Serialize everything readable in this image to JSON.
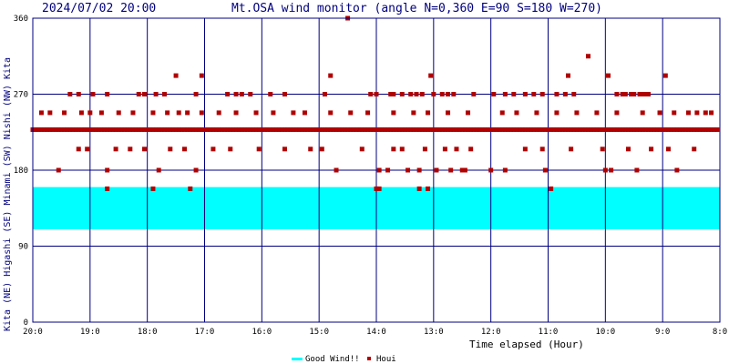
{
  "header": {
    "timestamp": "2024/07/02 20:00",
    "title": "Mt.OSA wind monitor (angle N=0,360 E=90 S=180 W=270)"
  },
  "side_label": "Kita (NE) Higashi (SE) Minami (SW) Nishi (NW) Kita",
  "legend": {
    "good_wind": "Good Wind!!",
    "houi": "Houi"
  },
  "colors": {
    "frame": "#000080",
    "band": "#00ffff",
    "point": "#b00000",
    "grid": "#000080"
  },
  "chart_data": {
    "type": "scatter",
    "title": "Mt.OSA wind monitor (angle N=0,360 E=90 S=180 W=270)",
    "xlabel": "Time elapsed (Hour)",
    "ylabel": "Kita (NE) Higashi (SE) Minami (SW) Nishi (NW) Kita",
    "x_unit": "hours elapsed",
    "xlim": [
      0,
      12
    ],
    "ylim": [
      0,
      360
    ],
    "yticks": [
      0,
      90,
      180,
      270,
      360
    ],
    "ytick_labels": [
      "0",
      "90",
      "180",
      "270",
      "360"
    ],
    "xtick_positions": [
      0,
      1,
      2,
      3,
      4,
      5,
      6,
      7,
      8,
      9,
      10,
      11,
      12
    ],
    "xtick_labels": [
      "20:0",
      "19:0",
      "18:0",
      "17:0",
      "16:0",
      "15:0",
      "14:0",
      "13:0",
      "12:0",
      "11:0",
      "10:0",
      "9:0",
      "8:0"
    ],
    "grid": true,
    "good_wind_range": [
      110,
      160
    ],
    "series": [
      {
        "name": "Houi",
        "x": [
          0.0,
          0.05,
          0.1,
          0.15,
          0.2,
          0.25,
          0.3,
          0.35,
          0.4,
          0.45,
          0.5,
          0.55,
          0.6,
          0.65,
          0.7,
          0.75,
          0.8,
          0.85,
          0.9,
          0.95,
          1.0,
          1.05,
          1.1,
          1.15,
          1.2,
          1.25,
          1.3,
          1.35,
          1.4,
          1.45,
          1.5,
          1.55,
          1.6,
          1.65,
          1.7,
          1.75,
          1.8,
          1.85,
          1.9,
          1.95,
          2.0,
          2.05,
          2.1,
          2.15,
          2.2,
          2.25,
          2.3,
          2.35,
          2.4,
          2.45,
          2.5,
          2.55,
          2.6,
          2.65,
          2.7,
          2.75,
          2.8,
          2.85,
          2.9,
          2.95,
          3.0,
          3.05,
          3.1,
          3.15,
          3.2,
          3.25,
          3.3,
          3.35,
          3.4,
          3.45,
          3.5,
          3.55,
          3.6,
          3.65,
          3.7,
          3.75,
          3.8,
          3.85,
          3.9,
          3.95,
          4.0,
          4.05,
          4.1,
          4.15,
          4.2,
          4.25,
          4.3,
          4.35,
          4.4,
          4.45,
          4.5,
          4.55,
          4.6,
          4.65,
          4.7,
          4.75,
          4.8,
          4.85,
          4.9,
          4.95,
          5.0,
          5.05,
          5.1,
          5.15,
          5.2,
          5.25,
          5.3,
          5.35,
          5.4,
          5.45,
          5.5,
          5.55,
          5.6,
          5.65,
          5.7,
          5.75,
          5.8,
          5.85,
          5.9,
          5.95,
          6.0,
          6.05,
          6.1,
          6.15,
          6.2,
          6.25,
          6.3,
          6.35,
          6.4,
          6.45,
          6.5,
          6.55,
          6.6,
          6.65,
          6.7,
          6.75,
          6.8,
          6.85,
          6.9,
          6.95,
          7.0,
          7.05,
          7.1,
          7.15,
          7.2,
          7.25,
          7.3,
          7.35,
          7.4,
          7.45,
          7.5,
          7.55,
          7.6,
          7.65,
          7.7,
          7.75,
          7.8,
          7.85,
          7.9,
          7.95,
          8.0,
          8.05,
          8.1,
          8.15,
          8.2,
          8.25,
          8.3,
          8.35,
          8.4,
          8.45,
          8.5,
          8.55,
          8.6,
          8.65,
          8.7,
          8.75,
          8.8,
          8.85,
          8.9,
          8.95,
          9.0,
          9.05,
          9.1,
          9.15,
          9.2,
          9.25,
          9.3,
          9.35,
          9.4,
          9.45,
          9.5,
          9.55,
          9.6,
          9.65,
          9.7,
          9.75,
          9.8,
          9.85,
          9.9,
          9.95,
          10.0,
          10.05,
          10.1,
          10.15,
          10.2,
          10.25,
          10.3,
          10.35,
          10.4,
          10.45,
          10.5,
          10.55,
          10.6,
          10.65,
          10.7,
          10.75,
          10.8,
          10.85,
          10.9,
          10.95,
          11.0,
          11.05,
          11.1,
          11.15,
          11.2,
          11.25,
          11.3,
          11.35,
          11.4,
          11.45,
          11.5,
          11.55,
          11.6,
          11.65,
          11.7,
          11.75,
          11.8,
          11.85,
          11.9,
          11.95,
          0.45,
          1.3,
          2.2,
          2.85,
          5.3,
          6.05,
          6.2,
          6.55,
          6.75,
          7.05,
          7.3,
          7.5,
          7.55,
          8.0,
          8.25,
          8.95,
          10.0,
          10.1,
          10.55,
          11.25,
          0.8,
          0.95,
          1.45,
          1.7,
          1.95,
          2.4,
          2.65,
          3.15,
          3.45,
          3.95,
          4.4,
          4.85,
          5.05,
          5.75,
          6.3,
          6.45,
          6.85,
          7.2,
          7.4,
          7.65,
          8.6,
          8.9,
          9.4,
          9.95,
          10.4,
          10.8,
          11.1,
          11.55,
          0.15,
          0.3,
          0.55,
          0.85,
          1.0,
          1.2,
          1.5,
          1.75,
          2.1,
          2.35,
          2.55,
          2.7,
          2.95,
          3.25,
          3.55,
          3.9,
          4.2,
          4.55,
          4.75,
          5.2,
          5.55,
          5.85,
          6.3,
          6.65,
          6.9,
          7.25,
          7.6,
          8.2,
          8.45,
          8.8,
          9.15,
          9.5,
          9.85,
          10.2,
          10.65,
          10.95,
          11.2,
          11.45,
          11.6,
          11.75,
          11.85,
          0.65,
          0.8,
          1.05,
          1.3,
          1.85,
          1.95,
          2.15,
          2.3,
          2.85,
          3.4,
          3.55,
          3.65,
          3.8,
          4.15,
          4.4,
          5.1,
          5.9,
          6.0,
          6.25,
          6.3,
          6.45,
          6.6,
          6.7,
          6.8,
          7.0,
          7.15,
          7.25,
          7.35,
          7.7,
          8.05,
          8.25,
          8.4,
          8.6,
          8.75,
          8.9,
          9.15,
          9.3,
          9.45,
          10.2,
          10.3,
          10.35,
          10.45,
          10.5,
          10.6,
          10.65,
          10.7,
          10.75,
          2.5,
          2.95,
          5.2,
          6.95,
          9.35,
          10.05,
          11.05,
          5.5,
          9.7,
          1.3,
          2.1,
          2.75,
          6.0,
          6.05,
          6.75,
          6.9,
          9.05
        ],
        "y": [
          228,
          228,
          228,
          228,
          228,
          228,
          228,
          228,
          228,
          228,
          228,
          228,
          228,
          228,
          228,
          228,
          228,
          228,
          228,
          228,
          228,
          228,
          228,
          228,
          228,
          228,
          228,
          228,
          228,
          228,
          228,
          228,
          228,
          228,
          228,
          228,
          228,
          228,
          228,
          228,
          228,
          228,
          228,
          228,
          228,
          228,
          228,
          228,
          228,
          228,
          228,
          228,
          228,
          228,
          228,
          228,
          228,
          228,
          228,
          228,
          228,
          228,
          228,
          228,
          228,
          228,
          228,
          228,
          228,
          228,
          228,
          228,
          228,
          228,
          228,
          228,
          228,
          228,
          228,
          228,
          228,
          228,
          228,
          228,
          228,
          228,
          228,
          228,
          228,
          228,
          228,
          228,
          228,
          228,
          228,
          228,
          228,
          228,
          228,
          228,
          228,
          228,
          228,
          228,
          228,
          228,
          228,
          228,
          228,
          228,
          228,
          228,
          228,
          228,
          228,
          228,
          228,
          228,
          228,
          228,
          228,
          228,
          228,
          228,
          228,
          228,
          228,
          228,
          228,
          228,
          228,
          228,
          228,
          228,
          228,
          228,
          228,
          228,
          228,
          228,
          228,
          228,
          228,
          228,
          228,
          228,
          228,
          228,
          228,
          228,
          228,
          228,
          228,
          228,
          228,
          228,
          228,
          228,
          228,
          228,
          228,
          228,
          228,
          228,
          228,
          228,
          228,
          228,
          228,
          228,
          228,
          228,
          228,
          228,
          228,
          228,
          228,
          228,
          228,
          228,
          228,
          228,
          228,
          228,
          228,
          228,
          228,
          228,
          228,
          228,
          228,
          228,
          228,
          228,
          228,
          228,
          228,
          228,
          228,
          228,
          228,
          228,
          228,
          228,
          228,
          228,
          228,
          228,
          228,
          228,
          228,
          228,
          228,
          228,
          228,
          228,
          228,
          228,
          228,
          228,
          228,
          228,
          228,
          228,
          228,
          228,
          228,
          228,
          228,
          228,
          228,
          228,
          228,
          228,
          228,
          228,
          228,
          228,
          228,
          228,
          180,
          180,
          180,
          180,
          180,
          180,
          180,
          180,
          180,
          180,
          180,
          180,
          180,
          180,
          180,
          180,
          180,
          180,
          180,
          180,
          205,
          205,
          205,
          205,
          205,
          205,
          205,
          205,
          205,
          205,
          205,
          205,
          205,
          205,
          205,
          205,
          205,
          205,
          205,
          205,
          205,
          205,
          205,
          205,
          205,
          205,
          205,
          205,
          248,
          248,
          248,
          248,
          248,
          248,
          248,
          248,
          248,
          248,
          248,
          248,
          248,
          248,
          248,
          248,
          248,
          248,
          248,
          248,
          248,
          248,
          248,
          248,
          248,
          248,
          248,
          248,
          248,
          248,
          248,
          248,
          248,
          248,
          248,
          248,
          248,
          248,
          248,
          248,
          248,
          270,
          270,
          270,
          270,
          270,
          270,
          270,
          270,
          270,
          270,
          270,
          270,
          270,
          270,
          270,
          270,
          270,
          270,
          270,
          270,
          270,
          270,
          270,
          270,
          270,
          270,
          270,
          270,
          270,
          270,
          270,
          270,
          270,
          270,
          270,
          270,
          270,
          270,
          270,
          270,
          270,
          270,
          270,
          270,
          270,
          270,
          270,
          292,
          292,
          292,
          292,
          292,
          292,
          292,
          360,
          315,
          158,
          158,
          158,
          158,
          158,
          158,
          158,
          158
        ]
      }
    ]
  }
}
